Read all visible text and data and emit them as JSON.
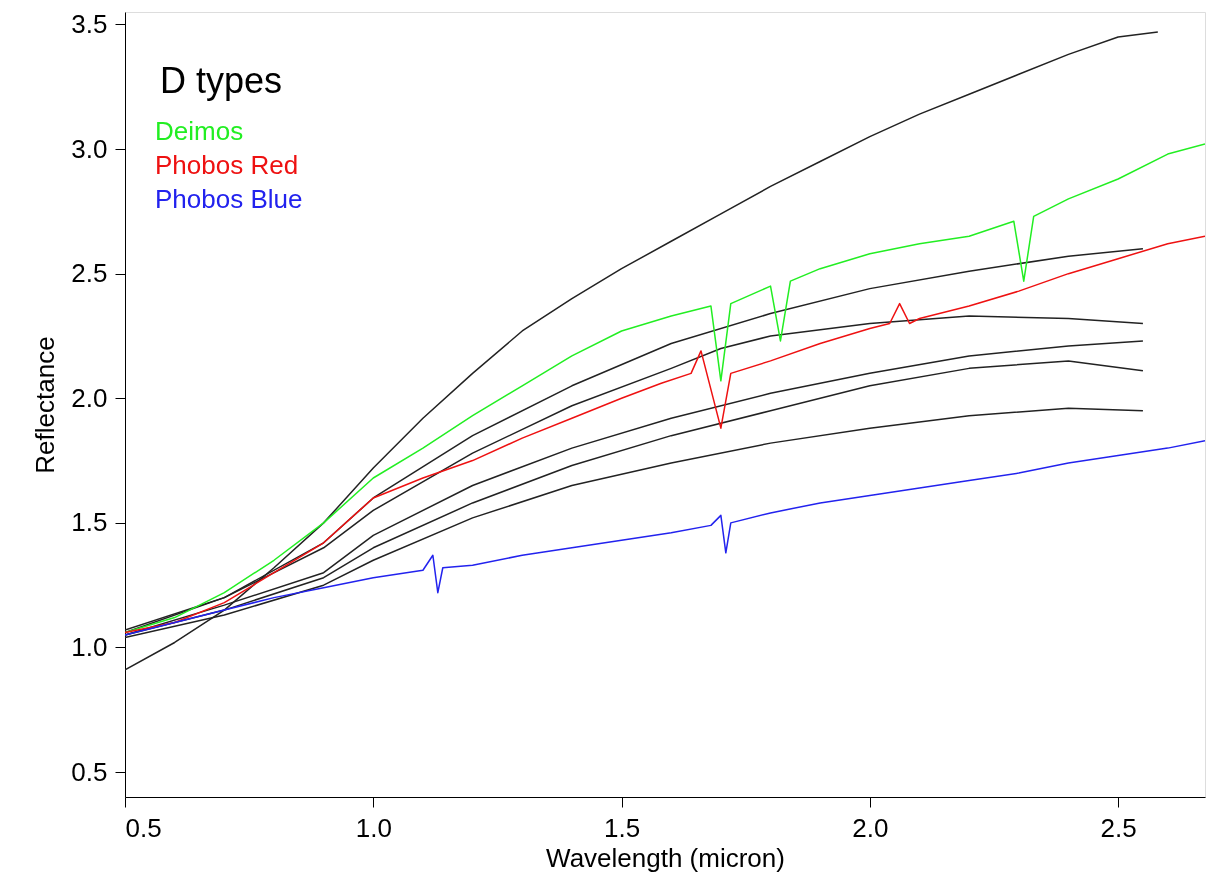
{
  "chart_data": {
    "type": "line",
    "xlabel": "Wavelength (micron)",
    "ylabel": "Reflectance",
    "annotations": [
      "D types"
    ],
    "xlim": [
      0.5,
      2.675
    ],
    "ylim": [
      0.4,
      3.55
    ],
    "xticks": [
      {
        "value": 0.5,
        "label": "0.5"
      },
      {
        "value": 1.0,
        "label": "1.0"
      },
      {
        "value": 1.5,
        "label": "1.5"
      },
      {
        "value": 2.0,
        "label": "2.0"
      },
      {
        "value": 2.5,
        "label": "2.5"
      }
    ],
    "yticks": [
      {
        "value": 0.5,
        "label": "0.5"
      },
      {
        "value": 1.0,
        "label": "1.0"
      },
      {
        "value": 1.5,
        "label": "1.5"
      },
      {
        "value": 2.0,
        "label": "2.0"
      },
      {
        "value": 2.5,
        "label": "2.5"
      },
      {
        "value": 3.0,
        "label": "3.0"
      },
      {
        "value": 3.5,
        "label": "3.5"
      }
    ],
    "grid": false,
    "legend": "top left",
    "marker": "none",
    "line_style": "solid",
    "series": [
      {
        "color": "#222222",
        "x": [
          0.5,
          0.6,
          0.7,
          0.8,
          0.9,
          1.0,
          1.1,
          1.2,
          1.3,
          1.4,
          1.5,
          1.6,
          1.7,
          1.8,
          1.9,
          2.0,
          2.1,
          2.2,
          2.3,
          2.4,
          2.5,
          2.58
        ],
        "values": [
          0.91,
          1.02,
          1.15,
          1.32,
          1.5,
          1.72,
          1.92,
          2.1,
          2.27,
          2.4,
          2.52,
          2.63,
          2.74,
          2.85,
          2.95,
          3.05,
          3.14,
          3.22,
          3.3,
          3.38,
          3.45,
          3.47
        ]
      },
      {
        "color": "#222222",
        "x": [
          0.5,
          0.7,
          0.9,
          1.0,
          1.2,
          1.4,
          1.6,
          1.8,
          2.0,
          2.2,
          2.4,
          2.55
        ],
        "values": [
          1.06,
          1.2,
          1.42,
          1.6,
          1.85,
          2.05,
          2.22,
          2.34,
          2.44,
          2.51,
          2.57,
          2.6
        ]
      },
      {
        "color": "#222222",
        "x": [
          0.5,
          0.7,
          0.9,
          1.0,
          1.2,
          1.4,
          1.6,
          1.7,
          1.8,
          2.0,
          2.2,
          2.4,
          2.55
        ],
        "values": [
          1.07,
          1.2,
          1.4,
          1.55,
          1.78,
          1.97,
          2.12,
          2.2,
          2.25,
          2.3,
          2.33,
          2.32,
          2.3
        ]
      },
      {
        "color": "#222222",
        "x": [
          0.5,
          0.7,
          0.9,
          1.0,
          1.2,
          1.4,
          1.6,
          1.8,
          2.0,
          2.2,
          2.4,
          2.55
        ],
        "values": [
          1.05,
          1.17,
          1.3,
          1.45,
          1.65,
          1.8,
          1.92,
          2.02,
          2.1,
          2.17,
          2.21,
          2.23
        ]
      },
      {
        "color": "#222222",
        "x": [
          0.5,
          0.7,
          0.9,
          1.0,
          1.2,
          1.4,
          1.6,
          1.8,
          2.0,
          2.2,
          2.4,
          2.55
        ],
        "values": [
          1.05,
          1.15,
          1.28,
          1.4,
          1.58,
          1.73,
          1.85,
          1.95,
          2.05,
          2.12,
          2.15,
          2.11
        ]
      },
      {
        "color": "#222222",
        "x": [
          0.5,
          0.7,
          0.9,
          1.0,
          1.2,
          1.4,
          1.6,
          1.8,
          2.0,
          2.2,
          2.4,
          2.55
        ],
        "values": [
          1.04,
          1.13,
          1.25,
          1.35,
          1.52,
          1.65,
          1.74,
          1.82,
          1.88,
          1.93,
          1.96,
          1.95
        ]
      },
      {
        "name": "Deimos",
        "color": "#22ee22",
        "x": [
          0.5,
          0.6,
          0.7,
          0.8,
          0.9,
          1.0,
          1.1,
          1.2,
          1.3,
          1.4,
          1.5,
          1.6,
          1.68,
          1.7,
          1.72,
          1.8,
          1.82,
          1.84,
          1.9,
          2.0,
          2.1,
          2.2,
          2.29,
          2.31,
          2.33,
          2.4,
          2.5,
          2.6,
          2.675
        ],
        "values": [
          1.06,
          1.12,
          1.22,
          1.35,
          1.5,
          1.68,
          1.8,
          1.93,
          2.05,
          2.17,
          2.27,
          2.33,
          2.37,
          2.07,
          2.38,
          2.45,
          2.23,
          2.47,
          2.52,
          2.58,
          2.62,
          2.65,
          2.71,
          2.47,
          2.73,
          2.8,
          2.88,
          2.98,
          3.02
        ]
      },
      {
        "name": "Phobos Red",
        "color": "#ee1111",
        "x": [
          0.5,
          0.6,
          0.7,
          0.8,
          0.9,
          1.0,
          1.1,
          1.2,
          1.3,
          1.4,
          1.5,
          1.58,
          1.64,
          1.66,
          1.7,
          1.72,
          1.8,
          1.9,
          2.0,
          2.04,
          2.06,
          2.08,
          2.1,
          2.2,
          2.3,
          2.4,
          2.5,
          2.6,
          2.675
        ],
        "values": [
          1.06,
          1.1,
          1.18,
          1.3,
          1.42,
          1.6,
          1.68,
          1.75,
          1.84,
          1.92,
          2.0,
          2.06,
          2.1,
          2.19,
          1.88,
          2.1,
          2.15,
          2.22,
          2.28,
          2.3,
          2.38,
          2.3,
          2.32,
          2.37,
          2.43,
          2.5,
          2.56,
          2.62,
          2.65
        ]
      },
      {
        "name": "Phobos Blue",
        "color": "#2222ee",
        "x": [
          0.5,
          0.6,
          0.7,
          0.8,
          0.9,
          1.0,
          1.1,
          1.12,
          1.13,
          1.14,
          1.2,
          1.3,
          1.4,
          1.5,
          1.6,
          1.68,
          1.7,
          1.71,
          1.72,
          1.8,
          1.9,
          2.0,
          2.1,
          2.2,
          2.3,
          2.4,
          2.5,
          2.6,
          2.675
        ],
        "values": [
          1.05,
          1.1,
          1.15,
          1.2,
          1.24,
          1.28,
          1.31,
          1.37,
          1.22,
          1.32,
          1.33,
          1.37,
          1.4,
          1.43,
          1.46,
          1.49,
          1.53,
          1.38,
          1.5,
          1.54,
          1.58,
          1.61,
          1.64,
          1.67,
          1.7,
          1.74,
          1.77,
          1.8,
          1.83
        ]
      }
    ]
  }
}
